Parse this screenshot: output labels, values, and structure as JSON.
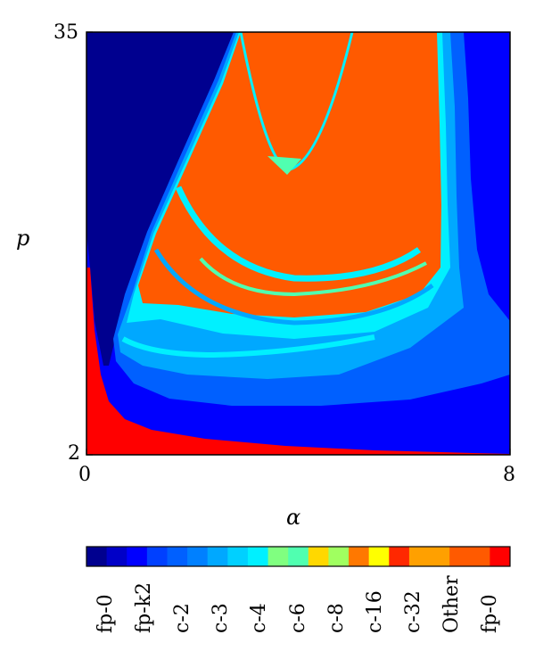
{
  "chart_data": {
    "type": "heatmap",
    "title": "",
    "xlabel": "α",
    "ylabel": "p",
    "xlim": [
      0,
      8
    ],
    "ylim": [
      2,
      35
    ],
    "x_ticks": [
      "0",
      "8"
    ],
    "y_ticks": [
      "2",
      "35"
    ],
    "regions_description": "Bifurcation-type map over (α, p): dark blue fp-0 region at upper-left, red fp-0 strip along bottom/left edge, blue fp-k2 region on right and bottom, nested parabolic bands of c-2 / c-3 / c-4 / c-6 around an orange 'Other' (chaotic) interior.",
    "colorbar": {
      "categories": [
        {
          "label": "fp-0",
          "color": "#00008f"
        },
        {
          "label": "fp-k2",
          "color": "#0000ff"
        },
        {
          "label": "c-2",
          "color": "#0060ff"
        },
        {
          "label": "c-3",
          "color": "#00a8ff"
        },
        {
          "label": "c-4",
          "color": "#00f0ff"
        },
        {
          "label": "c-6",
          "color": "#50ffb0"
        },
        {
          "label": "c-8",
          "color": "#a0ff60"
        },
        {
          "label": "c-16",
          "color": "#ffff00"
        },
        {
          "label": "c-32",
          "color": "#ffa000"
        },
        {
          "label": "Other",
          "color": "#ff5a00"
        },
        {
          "label": "fp-0",
          "color": "#ff0000"
        }
      ],
      "swatch_colors_extra": [
        "#0000c8",
        "#0040ff",
        "#0080ff",
        "#00d0ff",
        "#80ff80",
        "#ffd800",
        "#ff7800",
        "#ff2800"
      ]
    }
  }
}
